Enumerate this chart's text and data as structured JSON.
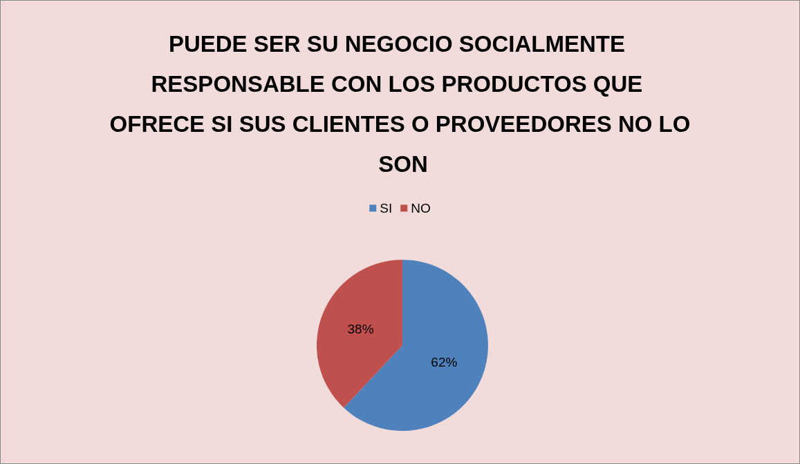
{
  "chart_data": {
    "type": "pie",
    "title": "PUEDE SER SU NEGOCIO SOCIALMENTE RESPONSABLE CON LOS PRODUCTOS QUE OFRECE SI SUS CLIENTES O PROVEEDORES NO LO SON",
    "categories": [
      "SI",
      "NO"
    ],
    "values": [
      62,
      38
    ],
    "colors": [
      "#4f81bd",
      "#c0504d"
    ],
    "legend": "top",
    "value_labels": [
      "62%",
      "38%"
    ]
  }
}
